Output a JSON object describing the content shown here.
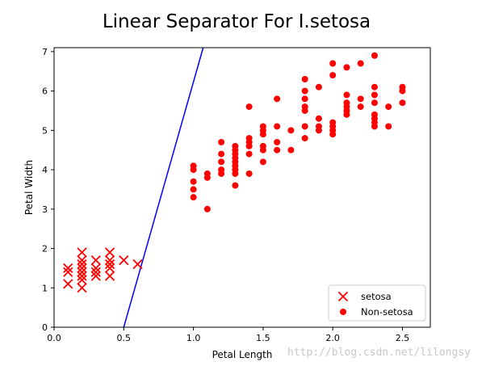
{
  "chart_data": {
    "type": "scatter",
    "title": "Linear Separator For I.setosa",
    "xlabel": "Petal Length",
    "ylabel": "Petal Width",
    "xlim": [
      0.0,
      2.7
    ],
    "ylim": [
      0,
      7.1
    ],
    "xticks": [
      0.0,
      0.5,
      1.0,
      1.5,
      2.0,
      2.5
    ],
    "xtick_labels": [
      "0.0",
      "0.5",
      "1.0",
      "1.5",
      "2.0",
      "2.5"
    ],
    "yticks": [
      0,
      1,
      2,
      3,
      4,
      5,
      6,
      7
    ],
    "ytick_labels": [
      "0",
      "1",
      "2",
      "3",
      "4",
      "5",
      "6",
      "7"
    ],
    "legend_position": "lower-right",
    "series": [
      {
        "name": "setosa",
        "marker": "x",
        "color": "#ff0000",
        "points": [
          [
            0.1,
            1.1
          ],
          [
            0.1,
            1.4
          ],
          [
            0.1,
            1.5
          ],
          [
            0.2,
            1.0
          ],
          [
            0.2,
            1.2
          ],
          [
            0.2,
            1.3
          ],
          [
            0.2,
            1.4
          ],
          [
            0.2,
            1.5
          ],
          [
            0.2,
            1.6
          ],
          [
            0.2,
            1.7
          ],
          [
            0.2,
            1.9
          ],
          [
            0.3,
            1.3
          ],
          [
            0.3,
            1.4
          ],
          [
            0.3,
            1.5
          ],
          [
            0.3,
            1.7
          ],
          [
            0.4,
            1.3
          ],
          [
            0.4,
            1.5
          ],
          [
            0.4,
            1.6
          ],
          [
            0.4,
            1.7
          ],
          [
            0.4,
            1.9
          ],
          [
            0.5,
            1.7
          ],
          [
            0.6,
            1.6
          ]
        ]
      },
      {
        "name": "Non-setosa",
        "marker": "o",
        "color": "#ff0000",
        "points": [
          [
            1.0,
            3.3
          ],
          [
            1.0,
            3.5
          ],
          [
            1.0,
            3.7
          ],
          [
            1.0,
            4.0
          ],
          [
            1.0,
            4.1
          ],
          [
            1.1,
            3.0
          ],
          [
            1.1,
            3.8
          ],
          [
            1.1,
            3.9
          ],
          [
            1.2,
            3.9
          ],
          [
            1.2,
            4.0
          ],
          [
            1.2,
            4.2
          ],
          [
            1.2,
            4.4
          ],
          [
            1.2,
            4.7
          ],
          [
            1.3,
            3.6
          ],
          [
            1.3,
            3.9
          ],
          [
            1.3,
            4.0
          ],
          [
            1.3,
            4.1
          ],
          [
            1.3,
            4.2
          ],
          [
            1.3,
            4.3
          ],
          [
            1.3,
            4.4
          ],
          [
            1.3,
            4.5
          ],
          [
            1.3,
            4.6
          ],
          [
            1.4,
            3.9
          ],
          [
            1.4,
            4.4
          ],
          [
            1.4,
            4.6
          ],
          [
            1.4,
            4.7
          ],
          [
            1.4,
            4.8
          ],
          [
            1.4,
            5.6
          ],
          [
            1.5,
            4.2
          ],
          [
            1.5,
            4.5
          ],
          [
            1.5,
            4.6
          ],
          [
            1.5,
            4.9
          ],
          [
            1.5,
            5.0
          ],
          [
            1.5,
            5.1
          ],
          [
            1.6,
            4.5
          ],
          [
            1.6,
            4.7
          ],
          [
            1.6,
            5.1
          ],
          [
            1.6,
            5.8
          ],
          [
            1.7,
            4.5
          ],
          [
            1.7,
            5.0
          ],
          [
            1.8,
            4.8
          ],
          [
            1.8,
            5.1
          ],
          [
            1.8,
            5.5
          ],
          [
            1.8,
            5.6
          ],
          [
            1.8,
            5.8
          ],
          [
            1.8,
            6.0
          ],
          [
            1.8,
            6.3
          ],
          [
            1.9,
            5.0
          ],
          [
            1.9,
            5.1
          ],
          [
            1.9,
            5.3
          ],
          [
            1.9,
            6.1
          ],
          [
            2.0,
            4.9
          ],
          [
            2.0,
            5.0
          ],
          [
            2.0,
            5.1
          ],
          [
            2.0,
            5.2
          ],
          [
            2.0,
            6.4
          ],
          [
            2.0,
            6.7
          ],
          [
            2.1,
            5.4
          ],
          [
            2.1,
            5.5
          ],
          [
            2.1,
            5.6
          ],
          [
            2.1,
            5.7
          ],
          [
            2.1,
            5.9
          ],
          [
            2.1,
            6.6
          ],
          [
            2.2,
            5.6
          ],
          [
            2.2,
            5.8
          ],
          [
            2.2,
            6.7
          ],
          [
            2.3,
            5.1
          ],
          [
            2.3,
            5.2
          ],
          [
            2.3,
            5.3
          ],
          [
            2.3,
            5.4
          ],
          [
            2.3,
            5.7
          ],
          [
            2.3,
            5.9
          ],
          [
            2.3,
            6.1
          ],
          [
            2.3,
            6.9
          ],
          [
            2.4,
            5.1
          ],
          [
            2.4,
            5.6
          ],
          [
            2.5,
            5.7
          ],
          [
            2.5,
            6.0
          ],
          [
            2.5,
            6.1
          ]
        ]
      }
    ],
    "separator_line": {
      "color": "#0000ff",
      "points": [
        [
          0.5,
          0.0
        ],
        [
          1.07,
          7.1
        ]
      ]
    }
  },
  "watermark": "http://blog.csdn.net/lilongsy"
}
